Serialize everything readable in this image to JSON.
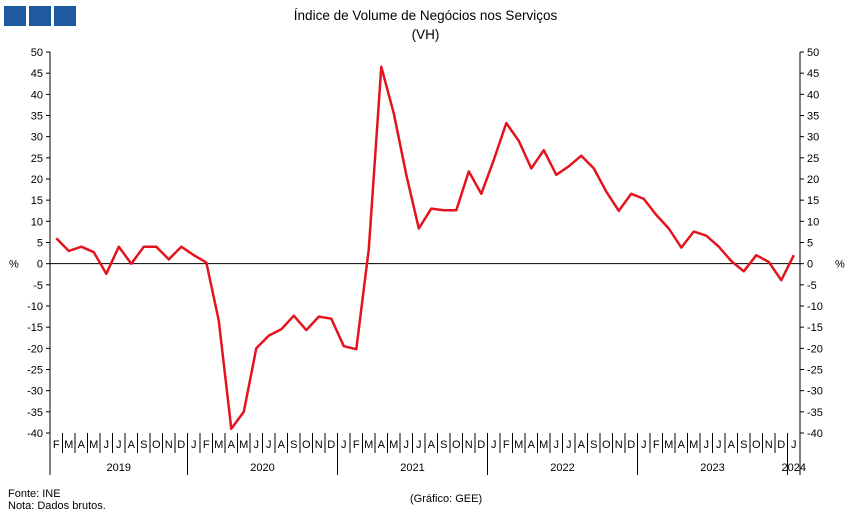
{
  "header": {
    "title": "Índice de Volume de Negócios nos Serviços",
    "subtitle": "(VH)"
  },
  "footer": {
    "source": "Fonte: INE",
    "note": "Nota: Dados brutos.",
    "credit": "(Gráfico: GEE)"
  },
  "chart_data": {
    "type": "line",
    "title": "Índice de Volume de Negócios nos Serviços",
    "subtitle": "(VH)",
    "ylabel": "%",
    "ylim": [
      -40,
      50
    ],
    "yticks": [
      50,
      45,
      40,
      35,
      30,
      25,
      20,
      15,
      10,
      5,
      0,
      -5,
      -10,
      -15,
      -20,
      -25,
      -30,
      -35,
      -40
    ],
    "grid": false,
    "color": "#e3141d",
    "months": [
      "F",
      "M",
      "A",
      "M",
      "J",
      "J",
      "A",
      "S",
      "O",
      "N",
      "D",
      "J",
      "F",
      "M",
      "A",
      "M",
      "J",
      "J",
      "A",
      "S",
      "O",
      "N",
      "D",
      "J",
      "F",
      "M",
      "A",
      "M",
      "J",
      "J",
      "A",
      "S",
      "O",
      "N",
      "D",
      "J",
      "F",
      "M",
      "A",
      "M",
      "J",
      "J",
      "A",
      "S",
      "O",
      "N",
      "D",
      "J",
      "F",
      "M",
      "A",
      "M",
      "J",
      "J",
      "A",
      "S",
      "O",
      "N",
      "D",
      "J"
    ],
    "years": [
      {
        "label": "2019",
        "start": 0,
        "end": 11
      },
      {
        "label": "2020",
        "start": 11,
        "end": 23
      },
      {
        "label": "2021",
        "start": 23,
        "end": 35
      },
      {
        "label": "2022",
        "start": 35,
        "end": 47
      },
      {
        "label": "2023",
        "start": 47,
        "end": 59
      },
      {
        "label": "2024",
        "start": 59,
        "end": 60
      }
    ],
    "values": [
      6,
      3,
      4,
      2.7,
      -2.4,
      4,
      0,
      4,
      4,
      1,
      4,
      2,
      0.3,
      -13.5,
      -39,
      -35,
      -20,
      -17,
      -15.5,
      -12.3,
      -15.7,
      -12.5,
      -13,
      -19.5,
      -20.2,
      3.5,
      46.5,
      35.5,
      21,
      8.3,
      13,
      12.6,
      12.6,
      21.8,
      16.5,
      24.5,
      33.2,
      29,
      22.5,
      26.8,
      21,
      23,
      25.5,
      22.5,
      17,
      12.5,
      16.5,
      15.3,
      11.5,
      8.3,
      3.8,
      7.6,
      6.6,
      4,
      0.6,
      -1.8,
      2,
      0.4,
      -3.9,
      2
    ]
  }
}
